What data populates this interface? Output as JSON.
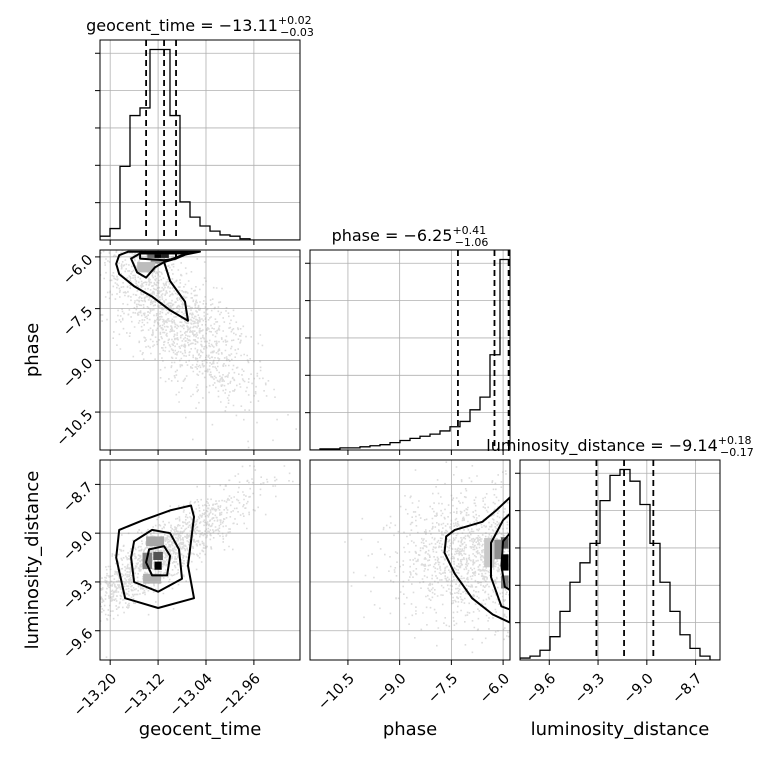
{
  "chart_data": {
    "type": "corner",
    "grid": true,
    "parameters": [
      {
        "name": "geocent_time",
        "title_base": "geocent_time = −13.11",
        "title_sup": "+0.02",
        "title_sub": "−0.03",
        "range": [
          -13.217,
          -12.883
        ],
        "ticks": [
          -13.2,
          -13.12,
          -13.04,
          -12.96
        ],
        "tick_labels": [
          "−13.20",
          "−13.12",
          "−13.04",
          "−12.96"
        ],
        "quantiles": [
          -13.14,
          -13.11,
          -13.09
        ],
        "hist": {
          "edges_start": -13.217,
          "bin_width": 0.0167,
          "counts": [
            3,
            9,
            58,
            98,
            104,
            150,
            150,
            98,
            30,
            18,
            11,
            7,
            4,
            3,
            1,
            0,
            0,
            0,
            0,
            0
          ]
        }
      },
      {
        "name": "phase",
        "title_base": "phase = −6.25",
        "title_sup": "+0.41",
        "title_sub": "−1.06",
        "range": [
          -11.6,
          -5.8
        ],
        "ticks": [
          -10.5,
          -9.0,
          -7.5,
          -6.0
        ],
        "tick_labels": [
          "−10.5",
          "−9.0",
          "−7.5",
          "−6.0"
        ],
        "quantiles": [
          -7.31,
          -6.25,
          -5.84
        ],
        "hist": {
          "edges_start": -11.6,
          "bin_width": 0.29,
          "counts": [
            0,
            1,
            1,
            2,
            2,
            3,
            4,
            5,
            7,
            9,
            11,
            13,
            15,
            18,
            22,
            27,
            38,
            50,
            90,
            180
          ]
        }
      },
      {
        "name": "luminosity_distance",
        "title_base": "luminosity_distance = −9.14",
        "title_sup": "+0.18",
        "title_sub": "−0.17",
        "range": [
          -9.78,
          -8.55
        ],
        "ticks": [
          -9.6,
          -9.3,
          -9.0,
          -8.7
        ],
        "tick_labels": [
          "−9.6",
          "−9.3",
          "−9.0",
          "−8.7"
        ],
        "quantiles": [
          -9.31,
          -9.14,
          -8.96
        ],
        "hist": {
          "edges_start": -9.78,
          "bin_width": 0.0615,
          "counts": [
            1,
            2,
            5,
            12,
            25,
            40,
            50,
            60,
            82,
            95,
            98,
            92,
            80,
            60,
            40,
            25,
            13,
            6,
            2,
            0
          ]
        }
      }
    ],
    "pairs": [
      {
        "x_param": "geocent_time",
        "y_param": "phase",
        "density_cells": [
          {
            "x": -13.12,
            "y": -5.98,
            "w": 0.012,
            "h": 0.1,
            "level": 1.0
          },
          {
            "x": -13.108,
            "y": -5.98,
            "w": 0.012,
            "h": 0.1,
            "level": 0.85
          },
          {
            "x": -13.132,
            "y": -5.98,
            "w": 0.012,
            "h": 0.1,
            "level": 0.55
          },
          {
            "x": -13.12,
            "y": -6.12,
            "w": 0.024,
            "h": 0.15,
            "level": 0.35
          },
          {
            "x": -13.14,
            "y": -6.3,
            "w": 0.03,
            "h": 0.3,
            "level": 0.2
          }
        ],
        "contours": [
          [
            [
              -13.15,
              -5.9
            ],
            [
              -13.09,
              -5.9
            ],
            [
              -13.09,
              -6.05
            ],
            [
              -13.11,
              -6.1
            ],
            [
              -13.15,
              -6.05
            ]
          ],
          [
            [
              -13.165,
              -6.05
            ],
            [
              -13.15,
              -5.9
            ],
            [
              -13.07,
              -5.9
            ],
            [
              -13.09,
              -6.05
            ],
            [
              -13.11,
              -6.15
            ],
            [
              -13.125,
              -6.3
            ],
            [
              -13.14,
              -6.6
            ],
            [
              -13.155,
              -6.45
            ]
          ],
          [
            [
              -13.185,
              -5.95
            ],
            [
              -13.17,
              -5.85
            ],
            [
              -13.05,
              -5.85
            ],
            [
              -13.08,
              -5.95
            ],
            [
              -13.11,
              -6.15
            ],
            [
              -13.1,
              -6.7
            ],
            [
              -13.075,
              -7.3
            ],
            [
              -13.07,
              -7.85
            ],
            [
              -13.1,
              -7.55
            ],
            [
              -13.13,
              -7.15
            ],
            [
              -13.16,
              -6.85
            ],
            [
              -13.185,
              -6.5
            ],
            [
              -13.19,
              -6.2
            ]
          ]
        ],
        "scatter": {
          "count": 1500,
          "seed": 7,
          "cx": -13.1,
          "cy": -7.6,
          "sx": 0.045,
          "sy": 1.3,
          "slope": -25
        }
      },
      {
        "x_param": "geocent_time",
        "y_param": "luminosity_distance",
        "density_cells": [
          {
            "x": -13.12,
            "y": -9.2,
            "w": 0.012,
            "h": 0.05,
            "level": 1.0
          },
          {
            "x": -13.12,
            "y": -9.14,
            "w": 0.016,
            "h": 0.05,
            "level": 0.65
          },
          {
            "x": -13.138,
            "y": -9.17,
            "w": 0.016,
            "h": 0.1,
            "level": 0.45
          },
          {
            "x": -13.125,
            "y": -9.05,
            "w": 0.03,
            "h": 0.06,
            "level": 0.3
          },
          {
            "x": -13.13,
            "y": -9.28,
            "w": 0.03,
            "h": 0.06,
            "level": 0.25
          }
        ],
        "contours": [
          [
            [
              -13.135,
              -9.1
            ],
            [
              -13.11,
              -9.08
            ],
            [
              -13.1,
              -9.14
            ],
            [
              -13.105,
              -9.26
            ],
            [
              -13.13,
              -9.26
            ],
            [
              -13.14,
              -9.18
            ]
          ],
          [
            [
              -13.16,
              -9.05
            ],
            [
              -13.13,
              -8.98
            ],
            [
              -13.1,
              -9.0
            ],
            [
              -13.085,
              -9.1
            ],
            [
              -13.08,
              -9.28
            ],
            [
              -13.12,
              -9.36
            ],
            [
              -13.16,
              -9.3
            ],
            [
              -13.165,
              -9.15
            ]
          ],
          [
            [
              -13.185,
              -8.98
            ],
            [
              -13.145,
              -8.92
            ],
            [
              -13.1,
              -8.86
            ],
            [
              -13.065,
              -8.83
            ],
            [
              -13.06,
              -8.9
            ],
            [
              -13.07,
              -9.2
            ],
            [
              -13.06,
              -9.4
            ],
            [
              -13.12,
              -9.46
            ],
            [
              -13.175,
              -9.4
            ],
            [
              -13.19,
              -9.15
            ]
          ]
        ],
        "scatter": {
          "count": 1500,
          "seed": 11,
          "cx": -13.12,
          "cy": -9.14,
          "sx": 0.035,
          "sy": 0.2,
          "slope": 3
        }
      },
      {
        "x_param": "phase",
        "y_param": "luminosity_distance",
        "density_cells": [
          {
            "x": -5.95,
            "y": -9.18,
            "w": 0.22,
            "h": 0.1,
            "level": 1.0
          },
          {
            "x": -5.95,
            "y": -9.06,
            "w": 0.22,
            "h": 0.07,
            "level": 0.6
          },
          {
            "x": -6.15,
            "y": -9.1,
            "w": 0.2,
            "h": 0.12,
            "level": 0.4
          },
          {
            "x": -5.95,
            "y": -9.3,
            "w": 0.22,
            "h": 0.08,
            "level": 0.45
          },
          {
            "x": -6.4,
            "y": -9.12,
            "w": 0.3,
            "h": 0.18,
            "level": 0.15
          }
        ],
        "contours": [
          [
            [
              -6.0,
              -9.05
            ],
            [
              -5.8,
              -9.0
            ],
            [
              -5.8,
              -9.35
            ],
            [
              -5.95,
              -9.33
            ],
            [
              -6.05,
              -9.2
            ]
          ],
          [
            [
              -6.35,
              -9.06
            ],
            [
              -6.0,
              -8.92
            ],
            [
              -5.8,
              -8.88
            ],
            [
              -5.8,
              -9.47
            ],
            [
              -6.05,
              -9.45
            ],
            [
              -6.35,
              -9.27
            ]
          ],
          [
            [
              -7.65,
              -9.02
            ],
            [
              -7.4,
              -8.98
            ],
            [
              -6.6,
              -8.93
            ],
            [
              -6.2,
              -8.86
            ],
            [
              -5.8,
              -8.78
            ],
            [
              -5.8,
              -9.55
            ],
            [
              -6.3,
              -9.5
            ],
            [
              -6.9,
              -9.4
            ],
            [
              -7.4,
              -9.25
            ],
            [
              -7.7,
              -9.12
            ]
          ]
        ],
        "scatter": {
          "count": 1500,
          "seed": 23,
          "cx": -6.8,
          "cy": -9.14,
          "sx": 1.2,
          "sy": 0.2,
          "slope": 0
        }
      }
    ]
  }
}
